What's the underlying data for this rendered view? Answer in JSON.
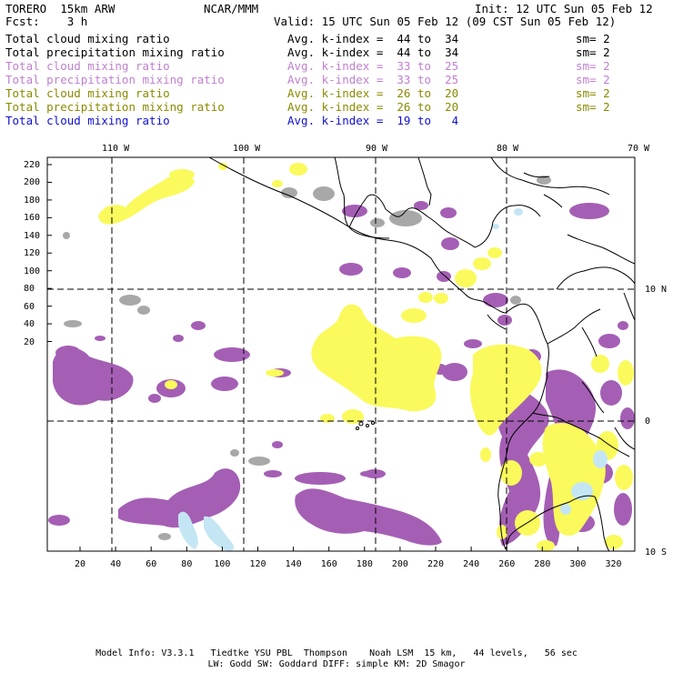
{
  "header": {
    "model": "TORERO  15km ARW",
    "center": "NCAR/MMM",
    "init": "Init: 12 UTC Sun 05 Feb 12",
    "fcst": "Fcst:    3 h",
    "valid": "Valid: 15 UTC Sun 05 Feb 12 (09 CST Sun 05 Feb 12)"
  },
  "legend": [
    {
      "field": "Total cloud mixing ratio",
      "index": "Avg. k-index =  44 to  34",
      "sm": "sm= 2",
      "color": "#000000"
    },
    {
      "field": "Total precipitation mixing ratio",
      "index": "Avg. k-index =  44 to  34",
      "sm": "sm= 2",
      "color": "#000000"
    },
    {
      "field": "Total cloud mixing ratio",
      "index": "Avg. k-index =  33 to  25",
      "sm": "sm= 2",
      "color": "#c080d0"
    },
    {
      "field": "Total precipitation mixing ratio",
      "index": "Avg. k-index =  33 to  25",
      "sm": "sm= 2",
      "color": "#c080d0"
    },
    {
      "field": "Total cloud mixing ratio",
      "index": "Avg. k-index =  26 to  20",
      "sm": "sm= 2",
      "color": "#8a8a00"
    },
    {
      "field": "Total precipitation mixing ratio",
      "index": "Avg. k-index =  26 to  20",
      "sm": "sm= 2",
      "color": "#8a8a00"
    },
    {
      "field": "Total cloud mixing ratio",
      "index": "Avg. k-index =  19 to   4",
      "sm": "",
      "color": "#1010d0"
    }
  ],
  "axes": {
    "lon_labels": [
      "110 W",
      "100 W",
      "90 W",
      "80 W",
      "70 W"
    ],
    "lat_labels": [
      "10 N",
      "0",
      "10 S"
    ],
    "y_ticks": [
      "220",
      "200",
      "180",
      "160",
      "140",
      "120",
      "100",
      "80",
      "60",
      "40",
      "20"
    ],
    "x_ticks": [
      "20",
      "40",
      "60",
      "80",
      "100",
      "120",
      "140",
      "160",
      "180",
      "200",
      "220",
      "240",
      "260",
      "280",
      "300",
      "320"
    ]
  },
  "footer": {
    "line1": "Model Info: V3.3.1   Tiedtke YSU PBL  Thompson    Noah LSM  15 km,   44 levels,   56 sec",
    "line2": "LW: Godd SW: Goddard DIFF: simple KM: 2D Smagor"
  },
  "colors": {
    "purple": "#a45fb4",
    "yellow": "#fafa5c",
    "gray": "#a8a8a8",
    "lightblue": "#c4e6f4"
  }
}
